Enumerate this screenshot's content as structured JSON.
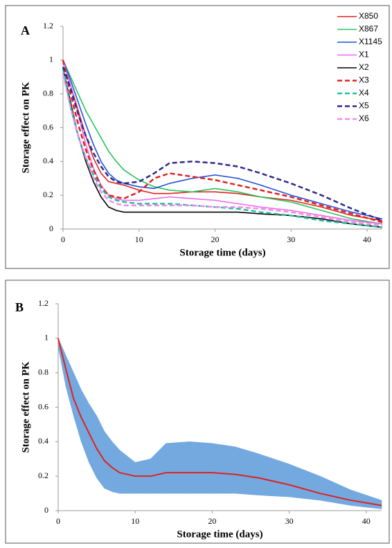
{
  "chart_data": [
    {
      "type": "line",
      "label": "A",
      "x_label": "Storage time (days)",
      "y_label": "Storage effect on PK",
      "x": [
        0,
        1,
        2,
        3,
        4,
        5,
        6,
        7,
        8,
        10,
        12,
        14,
        17,
        20,
        23,
        26,
        30,
        34,
        38,
        42
      ],
      "xlim": [
        0,
        42
      ],
      "xticks": [
        0,
        10,
        20,
        30,
        40
      ],
      "ylim": [
        0,
        1.2
      ],
      "yticks": [
        0,
        0.2,
        0.4,
        0.6,
        0.8,
        1,
        1.2
      ],
      "legend": "upper right",
      "series": [
        {
          "name": "X850",
          "color": "#e0201b",
          "dashed": false,
          "values": [
            1,
            0.85,
            0.7,
            0.55,
            0.42,
            0.33,
            0.28,
            0.27,
            0.26,
            0.23,
            0.21,
            0.21,
            0.22,
            0.22,
            0.21,
            0.19,
            0.17,
            0.13,
            0.08,
            0.05
          ]
        },
        {
          "name": "X867",
          "color": "#22c55a",
          "dashed": false,
          "values": [
            1,
            0.9,
            0.8,
            0.7,
            0.62,
            0.54,
            0.46,
            0.4,
            0.35,
            0.29,
            0.25,
            0.23,
            0.22,
            0.24,
            0.22,
            0.19,
            0.16,
            0.11,
            0.06,
            0.03
          ]
        },
        {
          "name": "X1145",
          "color": "#1f4fd6",
          "dashed": false,
          "values": [
            1,
            0.88,
            0.75,
            0.62,
            0.5,
            0.4,
            0.33,
            0.29,
            0.27,
            0.25,
            0.24,
            0.27,
            0.3,
            0.32,
            0.3,
            0.26,
            0.2,
            0.15,
            0.1,
            0.06
          ]
        },
        {
          "name": "X1",
          "color": "#ee66ee",
          "dashed": false,
          "values": [
            1,
            0.85,
            0.68,
            0.5,
            0.36,
            0.26,
            0.2,
            0.18,
            0.17,
            0.17,
            0.18,
            0.19,
            0.18,
            0.17,
            0.15,
            0.13,
            0.11,
            0.08,
            0.05,
            0.03
          ]
        },
        {
          "name": "X2",
          "color": "#000000",
          "dashed": false,
          "values": [
            0.95,
            0.75,
            0.55,
            0.4,
            0.28,
            0.19,
            0.13,
            0.11,
            0.1,
            0.1,
            0.1,
            0.1,
            0.1,
            0.1,
            0.1,
            0.09,
            0.08,
            0.06,
            0.03,
            0.01
          ]
        },
        {
          "name": "X3",
          "color": "#e0201b",
          "dashed": true,
          "values": [
            1,
            0.8,
            0.62,
            0.47,
            0.35,
            0.25,
            0.2,
            0.19,
            0.18,
            0.22,
            0.3,
            0.33,
            0.31,
            0.29,
            0.26,
            0.23,
            0.19,
            0.14,
            0.09,
            0.04
          ]
        },
        {
          "name": "X4",
          "color": "#22c0a0",
          "dashed": true,
          "values": [
            0.95,
            0.72,
            0.55,
            0.42,
            0.32,
            0.24,
            0.19,
            0.17,
            0.16,
            0.15,
            0.15,
            0.15,
            0.14,
            0.13,
            0.12,
            0.1,
            0.08,
            0.05,
            0.03,
            0.01
          ]
        },
        {
          "name": "X5",
          "color": "#2a2a8c",
          "dashed": true,
          "values": [
            0.96,
            0.83,
            0.68,
            0.55,
            0.45,
            0.37,
            0.31,
            0.28,
            0.27,
            0.28,
            0.33,
            0.39,
            0.4,
            0.39,
            0.37,
            0.33,
            0.27,
            0.2,
            0.12,
            0.05
          ]
        },
        {
          "name": "X6",
          "color": "#f08ae8",
          "dashed": true,
          "values": [
            0.92,
            0.72,
            0.55,
            0.42,
            0.3,
            0.22,
            0.17,
            0.15,
            0.14,
            0.14,
            0.14,
            0.14,
            0.14,
            0.13,
            0.13,
            0.12,
            0.1,
            0.07,
            0.04,
            0.02
          ]
        }
      ]
    },
    {
      "type": "line",
      "label": "B",
      "x_label": "Storage time (days)",
      "y_label": "Storage effect on PK",
      "x": [
        0,
        1,
        2,
        3,
        4,
        5,
        6,
        7,
        8,
        10,
        12,
        14,
        17,
        20,
        23,
        26,
        30,
        34,
        38,
        42
      ],
      "xlim": [
        0,
        42
      ],
      "xticks": [
        0,
        10,
        20,
        30,
        40
      ],
      "ylim": [
        0,
        1.2
      ],
      "yticks": [
        0,
        0.2,
        0.4,
        0.6,
        0.8,
        1,
        1.2
      ],
      "color": "#e0201b",
      "band_color": "#74a9e0",
      "values": [
        1,
        0.82,
        0.65,
        0.54,
        0.45,
        0.36,
        0.29,
        0.25,
        0.22,
        0.2,
        0.2,
        0.22,
        0.22,
        0.22,
        0.21,
        0.19,
        0.15,
        0.1,
        0.06,
        0.03
      ],
      "upper": [
        1,
        0.9,
        0.8,
        0.7,
        0.62,
        0.55,
        0.46,
        0.4,
        0.35,
        0.28,
        0.3,
        0.39,
        0.4,
        0.39,
        0.37,
        0.33,
        0.27,
        0.2,
        0.12,
        0.06
      ],
      "lower": [
        0.95,
        0.72,
        0.55,
        0.4,
        0.28,
        0.19,
        0.13,
        0.11,
        0.1,
        0.1,
        0.1,
        0.1,
        0.1,
        0.1,
        0.1,
        0.09,
        0.08,
        0.06,
        0.03,
        0.01
      ]
    }
  ]
}
